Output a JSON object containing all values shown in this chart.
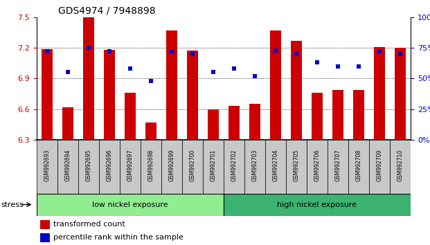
{
  "title": "GDS4974 / 7948898",
  "samples": [
    "GSM992693",
    "GSM992694",
    "GSM992695",
    "GSM992696",
    "GSM992697",
    "GSM992698",
    "GSM992699",
    "GSM992700",
    "GSM992701",
    "GSM992702",
    "GSM992703",
    "GSM992704",
    "GSM992705",
    "GSM992706",
    "GSM992707",
    "GSM992708",
    "GSM992709",
    "GSM992710"
  ],
  "bar_values": [
    7.19,
    6.62,
    7.5,
    7.18,
    6.76,
    6.47,
    7.37,
    7.17,
    6.6,
    6.63,
    6.65,
    7.37,
    7.27,
    6.76,
    6.79,
    6.79,
    7.21,
    7.2
  ],
  "dot_values": [
    72,
    55,
    75,
    72,
    58,
    48,
    72,
    70,
    55,
    58,
    52,
    73,
    70,
    63,
    60,
    60,
    72,
    70
  ],
  "ylim_left": [
    6.3,
    7.5
  ],
  "ylim_right": [
    0,
    100
  ],
  "yticks_left": [
    6.3,
    6.6,
    6.9,
    7.2,
    7.5
  ],
  "yticks_right": [
    0,
    25,
    50,
    75,
    100
  ],
  "ytick_labels_right": [
    "0%",
    "25%",
    "50%",
    "75%",
    "100%"
  ],
  "bar_color": "#CC0000",
  "dot_color": "#0000CC",
  "bar_bottom": 6.3,
  "low_nickel_count": 9,
  "groups": [
    {
      "label": "low nickel exposure",
      "start": 0,
      "end": 9,
      "color": "#90EE90"
    },
    {
      "label": "high nickel exposure",
      "start": 9,
      "end": 18,
      "color": "#3CB371"
    }
  ],
  "stress_label": "stress",
  "legend_bar_label": "transformed count",
  "legend_dot_label": "percentile rank within the sample",
  "left_tick_color": "#CC0000",
  "right_tick_color": "#0000CC",
  "title_fontsize": 10,
  "tick_fontsize": 8,
  "sample_fontsize": 5.5,
  "group_fontsize": 8,
  "legend_fontsize": 8
}
